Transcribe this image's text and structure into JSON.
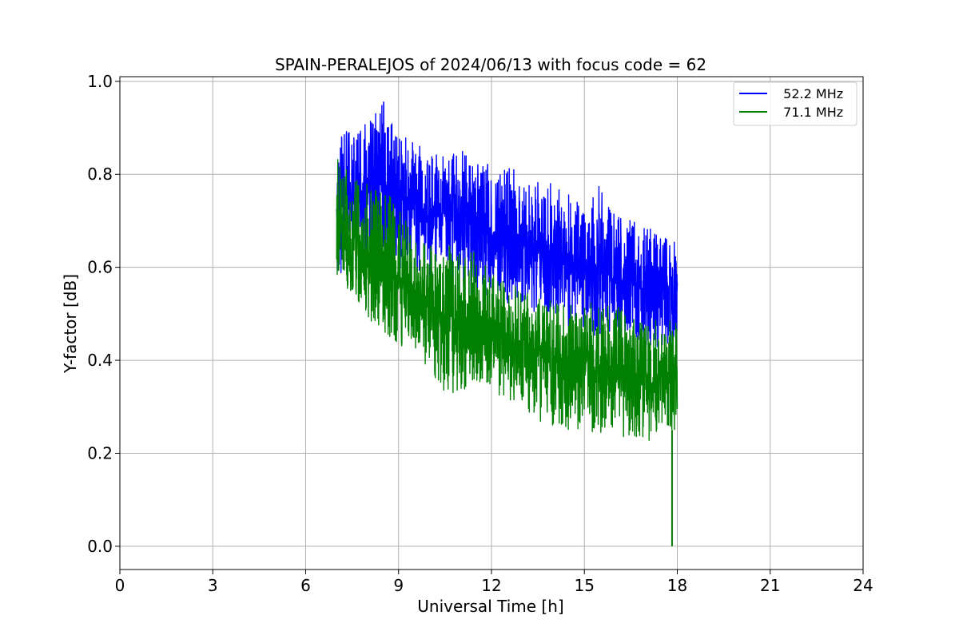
{
  "chart_data": {
    "type": "line",
    "title": "SPAIN-PERALEJOS of 2024/06/13 with focus code = 62",
    "xlabel": "Universal Time [h]",
    "ylabel": "Y-factor [dB]",
    "xlim": [
      0,
      24
    ],
    "ylim": [
      -0.05,
      1.01
    ],
    "xticks": [
      0,
      3,
      6,
      9,
      12,
      15,
      18,
      21,
      24
    ],
    "xtick_labels": [
      "0",
      "3",
      "6",
      "9",
      "12",
      "15",
      "18",
      "21",
      "24"
    ],
    "yticks": [
      0.0,
      0.2,
      0.4,
      0.6,
      0.8,
      1.0
    ],
    "ytick_labels": [
      "0.0",
      "0.2",
      "0.4",
      "0.6",
      "0.8",
      "1.0"
    ],
    "grid": true,
    "legend_position": "top-right",
    "series": [
      {
        "name": "  52.2 MHz",
        "color": "#0000ff",
        "x": [
          7.0,
          7.5,
          8.0,
          8.5,
          9.0,
          9.5,
          10.0,
          10.5,
          11.0,
          11.5,
          12.0,
          12.5,
          13.0,
          13.5,
          14.0,
          14.5,
          15.0,
          15.5,
          16.0,
          16.5,
          17.0,
          17.5,
          18.0
        ],
        "y_mean": [
          0.74,
          0.77,
          0.76,
          0.77,
          0.75,
          0.73,
          0.71,
          0.71,
          0.7,
          0.69,
          0.67,
          0.66,
          0.65,
          0.64,
          0.63,
          0.62,
          0.6,
          0.59,
          0.58,
          0.57,
          0.56,
          0.56,
          0.55
        ],
        "y_max": [
          0.87,
          0.91,
          0.91,
          0.96,
          0.89,
          0.87,
          0.85,
          0.85,
          0.86,
          0.82,
          0.83,
          0.82,
          0.81,
          0.79,
          0.78,
          0.76,
          0.74,
          0.78,
          0.72,
          0.7,
          0.69,
          0.67,
          0.65
        ],
        "y_min": [
          0.57,
          0.63,
          0.62,
          0.62,
          0.6,
          0.59,
          0.57,
          0.55,
          0.55,
          0.54,
          0.54,
          0.52,
          0.51,
          0.5,
          0.49,
          0.47,
          0.46,
          0.45,
          0.45,
          0.44,
          0.43,
          0.42,
          0.4
        ]
      },
      {
        "name": "  71.1 MHz",
        "color": "#008000",
        "x": [
          7.0,
          7.5,
          8.0,
          8.5,
          9.0,
          9.5,
          10.0,
          10.5,
          11.0,
          11.5,
          12.0,
          12.5,
          13.0,
          13.5,
          14.0,
          14.5,
          15.0,
          15.5,
          16.0,
          16.5,
          17.0,
          17.5,
          18.0
        ],
        "y_mean": [
          0.7,
          0.66,
          0.63,
          0.62,
          0.58,
          0.54,
          0.52,
          0.5,
          0.48,
          0.47,
          0.46,
          0.45,
          0.44,
          0.42,
          0.41,
          0.4,
          0.39,
          0.38,
          0.37,
          0.37,
          0.36,
          0.36,
          0.36
        ],
        "y_max": [
          0.86,
          0.79,
          0.78,
          0.77,
          0.73,
          0.67,
          0.65,
          0.64,
          0.66,
          0.63,
          0.59,
          0.57,
          0.55,
          0.54,
          0.53,
          0.52,
          0.52,
          0.53,
          0.52,
          0.49,
          0.48,
          0.5,
          0.48
        ],
        "y_min": [
          0.58,
          0.53,
          0.49,
          0.46,
          0.43,
          0.4,
          0.38,
          0.33,
          0.33,
          0.35,
          0.34,
          0.31,
          0.3,
          0.27,
          0.26,
          0.25,
          0.25,
          0.24,
          0.24,
          0.23,
          0.22,
          0.25,
          0.25
        ]
      }
    ],
    "annotations": [
      {
        "series": "71.1 MHz",
        "x": 17.83,
        "y": 0.0,
        "note_type": "min_spike"
      }
    ]
  }
}
